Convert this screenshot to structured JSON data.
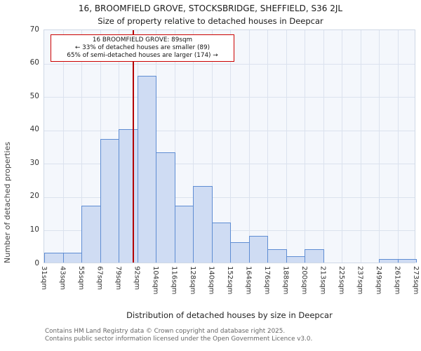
{
  "title": "16, BROOMFIELD GROVE, STOCKSBRIDGE, SHEFFIELD, S36 2JL",
  "subtitle": "Size of property relative to detached houses in Deepcar",
  "y_axis_label": "Number of detached properties",
  "x_axis_label": "Distribution of detached houses by size in Deepcar",
  "annotation": {
    "line1": "16 BROOMFIELD GROVE: 89sqm",
    "line2": "← 33% of detached houses are smaller (89)",
    "line3": "65% of semi-detached houses are larger (174) →"
  },
  "footer": {
    "line1": "Contains HM Land Registry data © Crown copyright and database right 2025.",
    "line2": "Contains public sector information licensed under the Open Government Licence v3.0."
  },
  "chart_data": {
    "type": "bar",
    "edges_sqm": [
      31,
      43,
      55,
      67,
      79,
      92,
      104,
      116,
      128,
      140,
      152,
      164,
      176,
      188,
      200,
      213,
      225,
      237,
      249,
      261,
      273
    ],
    "categories": [
      "31sqm",
      "43sqm",
      "55sqm",
      "67sqm",
      "79sqm",
      "92sqm",
      "104sqm",
      "116sqm",
      "128sqm",
      "140sqm",
      "152sqm",
      "164sqm",
      "176sqm",
      "188sqm",
      "200sqm",
      "213sqm",
      "225sqm",
      "237sqm",
      "249sqm",
      "261sqm",
      "273sqm"
    ],
    "values": [
      3,
      3,
      17,
      37,
      40,
      56,
      33,
      17,
      23,
      12,
      6,
      8,
      4,
      2,
      4,
      0,
      0,
      0,
      1,
      1
    ],
    "title": "Size of property relative to detached houses in Deepcar",
    "xlabel": "Distribution of detached houses by size in Deepcar",
    "ylabel": "Number of detached properties",
    "ylim": [
      0,
      70
    ],
    "ytick_step": 10,
    "grid": true,
    "legend": "none",
    "marker": {
      "label": "16 BROOMFIELD GROVE",
      "value_sqm": 89
    },
    "colors": {
      "bar_fill": "#cfdcf3",
      "bar_border": "#5f8dd3",
      "marker_line": "#b30000",
      "annotation_border": "#cc0000",
      "grid": "#dbe2ee",
      "plot_background": "#f4f7fc"
    }
  }
}
